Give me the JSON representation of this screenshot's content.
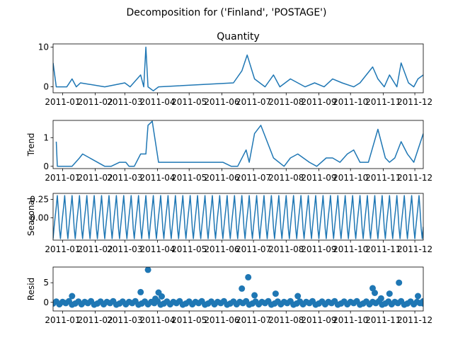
{
  "figure": {
    "suptitle": "Decomposition for ('Finland', 'POSTAGE')"
  },
  "colors": {
    "line": "#1f77b4",
    "axis": "#000000",
    "zero": "#000000"
  },
  "x_tick_labels": [
    "2011-01",
    "2011-02",
    "2011-03",
    "2011-04",
    "2011-05",
    "2011-06",
    "2011-07",
    "2011-08",
    "2011-09",
    "2011-10",
    "2011-11",
    "2011-12"
  ],
  "chart_data": [
    {
      "type": "line",
      "title": "Quantity",
      "ylabel": "",
      "x_range": [
        "2010-12-23",
        "2011-12-09"
      ],
      "ylim": [
        -1.5,
        10.8
      ],
      "yticks": [
        0,
        10
      ],
      "series": [
        {
          "x": [
            "2010-12-23",
            "2010-12-26",
            "2011-01-05",
            "2011-01-10",
            "2011-01-14",
            "2011-01-18",
            "2011-02-10",
            "2011-03-01",
            "2011-03-06",
            "2011-03-16",
            "2011-03-19",
            "2011-03-21",
            "2011-03-23",
            "2011-03-28",
            "2011-04-02",
            "2011-06-12",
            "2011-06-20",
            "2011-06-25",
            "2011-07-02",
            "2011-07-12",
            "2011-07-20",
            "2011-07-26",
            "2011-08-05",
            "2011-08-12",
            "2011-08-19",
            "2011-08-28",
            "2011-09-06",
            "2011-09-14",
            "2011-09-23",
            "2011-10-04",
            "2011-10-10",
            "2011-10-22",
            "2011-10-27",
            "2011-11-02",
            "2011-11-07",
            "2011-11-14",
            "2011-11-18",
            "2011-11-25",
            "2011-11-30",
            "2011-12-04",
            "2011-12-09"
          ],
          "y": [
            6,
            0,
            0,
            2,
            0,
            1,
            0,
            1,
            0,
            3,
            0,
            10,
            0,
            -1,
            0,
            1,
            4,
            8,
            2,
            0,
            3,
            0,
            2,
            1,
            0,
            1,
            0,
            2,
            1,
            0,
            1,
            5,
            2,
            0,
            3,
            0,
            6,
            1,
            0,
            2,
            3
          ]
        }
      ]
    },
    {
      "type": "line",
      "title": "",
      "ylabel": "Trend",
      "x_range": [
        "2010-12-23",
        "2011-12-09"
      ],
      "ylim": [
        -0.08,
        1.6
      ],
      "yticks": [
        0,
        1
      ],
      "series": [
        {
          "x": [
            "2010-12-26",
            "2010-12-27",
            "2011-01-10",
            "2011-01-17",
            "2011-01-20",
            "2011-02-10",
            "2011-02-16",
            "2011-02-24",
            "2011-03-02",
            "2011-03-05",
            "2011-03-10",
            "2011-03-16",
            "2011-03-21",
            "2011-03-23",
            "2011-03-27",
            "2011-04-02",
            "2011-04-08",
            "2011-06-02",
            "2011-06-10",
            "2011-06-16",
            "2011-06-24",
            "2011-06-27",
            "2011-07-02",
            "2011-07-08",
            "2011-07-20",
            "2011-07-30",
            "2011-08-05",
            "2011-08-12",
            "2011-08-23",
            "2011-08-30",
            "2011-09-08",
            "2011-09-14",
            "2011-09-21",
            "2011-09-28",
            "2011-10-04",
            "2011-10-10",
            "2011-10-18",
            "2011-10-27",
            "2011-11-03",
            "2011-11-07",
            "2011-11-12",
            "2011-11-18",
            "2011-11-24",
            "2011-11-30",
            "2011-12-09"
          ],
          "y": [
            0.86,
            0.0,
            0.0,
            0.29,
            0.43,
            0.0,
            0.0,
            0.14,
            0.14,
            0.0,
            0.0,
            0.43,
            0.43,
            1.43,
            1.57,
            0.14,
            0.14,
            0.14,
            0.0,
            0.0,
            0.57,
            0.14,
            1.14,
            1.43,
            0.29,
            0.0,
            0.29,
            0.43,
            0.14,
            0.0,
            0.29,
            0.29,
            0.14,
            0.43,
            0.57,
            0.14,
            0.14,
            1.29,
            0.29,
            0.14,
            0.29,
            0.86,
            0.43,
            0.14,
            1.14
          ]
        }
      ]
    },
    {
      "type": "line",
      "title": "",
      "ylabel": "Seasonal",
      "x_range": [
        "2010-12-23",
        "2011-12-09"
      ],
      "ylim": [
        -0.3,
        0.33
      ],
      "yticks": [
        0.25,
        0.0
      ],
      "period_days": 7,
      "pattern": [
        -0.28,
        -0.12,
        0.02,
        0.15,
        0.3,
        0.1,
        -0.14
      ]
    },
    {
      "type": "scatter",
      "title": "",
      "ylabel": "Resid",
      "x_range": [
        "2010-12-23",
        "2011-12-09"
      ],
      "ylim": [
        -2.2,
        9.0
      ],
      "yticks": [
        0,
        5
      ],
      "series": [
        {
          "x": [
            "2011-01-10",
            "2011-03-16",
            "2011-03-23",
            "2011-03-30",
            "2011-04-02",
            "2011-04-05",
            "2011-06-20",
            "2011-06-26",
            "2011-07-02",
            "2011-07-22",
            "2011-08-12",
            "2011-10-22",
            "2011-10-24",
            "2011-10-30",
            "2011-11-07",
            "2011-11-16",
            "2011-12-04",
            "2011-12-09"
          ],
          "y": [
            1.6,
            2.6,
            8.3,
            0.9,
            2.5,
            1.5,
            3.5,
            6.4,
            1.8,
            2.2,
            1.6,
            3.6,
            2.4,
            1.0,
            2.2,
            5.0,
            1.6,
            -0.3
          ]
        }
      ]
    }
  ]
}
